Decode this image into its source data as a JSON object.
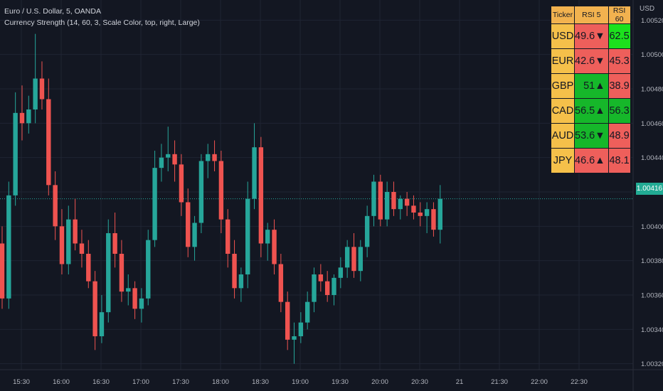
{
  "header": {
    "symbol": "Euro / U.S. Dollar, 5, OANDA",
    "indicator": "Currency Strength (14, 60, 3, Scale Color, top, right, Large)"
  },
  "price_scale": {
    "unit": "USD",
    "labels": [
      "1.00520",
      "1.00500",
      "1.00480",
      "1.00460",
      "1.00440",
      "1.00420",
      "1.00400",
      "1.00380",
      "1.00360",
      "1.00340",
      "1.00320"
    ],
    "last_price": "1.00416"
  },
  "time_axis": {
    "labels": [
      "15:30",
      "16:00",
      "16:30",
      "17:00",
      "17:30",
      "18:00",
      "18:30",
      "19:00",
      "19:30",
      "20:00",
      "20:30",
      "21",
      "21:30",
      "22:00",
      "22:30"
    ]
  },
  "colors": {
    "background": "#131722",
    "up": "#26a69a",
    "down": "#ef5350",
    "grid": "#1f2433",
    "axis_text": "#b2b5be"
  },
  "table": {
    "headers": [
      "Ticker",
      "RSI 5",
      "RSI 60"
    ],
    "rows": [
      {
        "ticker": "USD",
        "rsi5": "49.6▼",
        "rsi5_color": "red",
        "rsi60": "62.5",
        "rsi60_color": "lime"
      },
      {
        "ticker": "EUR",
        "rsi5": "42.6▼",
        "rsi5_color": "red",
        "rsi60": "45.3",
        "rsi60_color": "red"
      },
      {
        "ticker": "GBP",
        "rsi5": "51▲",
        "rsi5_color": "green",
        "rsi60": "38.9",
        "rsi60_color": "red"
      },
      {
        "ticker": "CAD",
        "rsi5": "56.5▲",
        "rsi5_color": "green",
        "rsi60": "56.3",
        "rsi60_color": "green"
      },
      {
        "ticker": "AUD",
        "rsi5": "53.6▼",
        "rsi5_color": "green",
        "rsi60": "48.9",
        "rsi60_color": "red"
      },
      {
        "ticker": "JPY",
        "rsi5": "46.6▲",
        "rsi5_color": "red",
        "rsi60": "48.1",
        "rsi60_color": "red"
      }
    ]
  },
  "chart_data": {
    "type": "candlestick",
    "x_start": "15:25",
    "interval_minutes": 5,
    "ylim": [
      1.00312,
      1.00528
    ],
    "candles": [
      {
        "o": 1.0039,
        "h": 1.004,
        "l": 1.00352,
        "c": 1.00358
      },
      {
        "o": 1.00358,
        "h": 1.00426,
        "l": 1.00352,
        "c": 1.00418
      },
      {
        "o": 1.00418,
        "h": 1.00478,
        "l": 1.00412,
        "c": 1.00466
      },
      {
        "o": 1.00466,
        "h": 1.00482,
        "l": 1.0045,
        "c": 1.0046
      },
      {
        "o": 1.0046,
        "h": 1.00476,
        "l": 1.00454,
        "c": 1.00468
      },
      {
        "o": 1.00468,
        "h": 1.00512,
        "l": 1.0046,
        "c": 1.00486
      },
      {
        "o": 1.00486,
        "h": 1.00496,
        "l": 1.00468,
        "c": 1.00474
      },
      {
        "o": 1.00474,
        "h": 1.00486,
        "l": 1.00418,
        "c": 1.00424
      },
      {
        "o": 1.00424,
        "h": 1.00432,
        "l": 1.00392,
        "c": 1.004
      },
      {
        "o": 1.004,
        "h": 1.0041,
        "l": 1.00372,
        "c": 1.00378
      },
      {
        "o": 1.00378,
        "h": 1.00412,
        "l": 1.00372,
        "c": 1.00404
      },
      {
        "o": 1.00404,
        "h": 1.00416,
        "l": 1.00386,
        "c": 1.0039
      },
      {
        "o": 1.0039,
        "h": 1.00398,
        "l": 1.00376,
        "c": 1.00384
      },
      {
        "o": 1.00384,
        "h": 1.00392,
        "l": 1.00364,
        "c": 1.00368
      },
      {
        "o": 1.00368,
        "h": 1.00374,
        "l": 1.00328,
        "c": 1.00336
      },
      {
        "o": 1.00336,
        "h": 1.0036,
        "l": 1.00332,
        "c": 1.0035
      },
      {
        "o": 1.0035,
        "h": 1.00404,
        "l": 1.00344,
        "c": 1.00396
      },
      {
        "o": 1.00396,
        "h": 1.00408,
        "l": 1.00376,
        "c": 1.00384
      },
      {
        "o": 1.00384,
        "h": 1.00392,
        "l": 1.00356,
        "c": 1.00362
      },
      {
        "o": 1.00362,
        "h": 1.00372,
        "l": 1.00354,
        "c": 1.00364
      },
      {
        "o": 1.00364,
        "h": 1.00368,
        "l": 1.00346,
        "c": 1.00352
      },
      {
        "o": 1.00352,
        "h": 1.00364,
        "l": 1.00344,
        "c": 1.00358
      },
      {
        "o": 1.00358,
        "h": 1.00398,
        "l": 1.00354,
        "c": 1.00392
      },
      {
        "o": 1.00392,
        "h": 1.00444,
        "l": 1.00388,
        "c": 1.00434
      },
      {
        "o": 1.00434,
        "h": 1.00448,
        "l": 1.00426,
        "c": 1.0044
      },
      {
        "o": 1.0044,
        "h": 1.00458,
        "l": 1.00432,
        "c": 1.00442
      },
      {
        "o": 1.00442,
        "h": 1.0045,
        "l": 1.00426,
        "c": 1.00436
      },
      {
        "o": 1.00436,
        "h": 1.00442,
        "l": 1.00406,
        "c": 1.00414
      },
      {
        "o": 1.00414,
        "h": 1.00422,
        "l": 1.00382,
        "c": 1.00388
      },
      {
        "o": 1.00388,
        "h": 1.00406,
        "l": 1.0038,
        "c": 1.00402
      },
      {
        "o": 1.00402,
        "h": 1.00442,
        "l": 1.00396,
        "c": 1.00438
      },
      {
        "o": 1.00438,
        "h": 1.00448,
        "l": 1.00428,
        "c": 1.00442
      },
      {
        "o": 1.00442,
        "h": 1.0045,
        "l": 1.00432,
        "c": 1.00438
      },
      {
        "o": 1.00438,
        "h": 1.00444,
        "l": 1.00396,
        "c": 1.00404
      },
      {
        "o": 1.00404,
        "h": 1.0041,
        "l": 1.00376,
        "c": 1.00384
      },
      {
        "o": 1.00384,
        "h": 1.00392,
        "l": 1.00358,
        "c": 1.00364
      },
      {
        "o": 1.00364,
        "h": 1.00376,
        "l": 1.00356,
        "c": 1.00372
      },
      {
        "o": 1.00372,
        "h": 1.00426,
        "l": 1.00364,
        "c": 1.00416
      },
      {
        "o": 1.00416,
        "h": 1.0046,
        "l": 1.0041,
        "c": 1.00446
      },
      {
        "o": 1.00446,
        "h": 1.00452,
        "l": 1.00382,
        "c": 1.0039
      },
      {
        "o": 1.0039,
        "h": 1.00402,
        "l": 1.0038,
        "c": 1.00398
      },
      {
        "o": 1.00398,
        "h": 1.00404,
        "l": 1.00372,
        "c": 1.00378
      },
      {
        "o": 1.00378,
        "h": 1.00384,
        "l": 1.0035,
        "c": 1.00356
      },
      {
        "o": 1.00356,
        "h": 1.00362,
        "l": 1.00328,
        "c": 1.00334
      },
      {
        "o": 1.00334,
        "h": 1.00344,
        "l": 1.0032,
        "c": 1.00336
      },
      {
        "o": 1.00336,
        "h": 1.0035,
        "l": 1.00332,
        "c": 1.00344
      },
      {
        "o": 1.00344,
        "h": 1.00362,
        "l": 1.0034,
        "c": 1.00356
      },
      {
        "o": 1.00356,
        "h": 1.00376,
        "l": 1.0035,
        "c": 1.00372
      },
      {
        "o": 1.00372,
        "h": 1.00378,
        "l": 1.00362,
        "c": 1.00368
      },
      {
        "o": 1.00368,
        "h": 1.00374,
        "l": 1.00356,
        "c": 1.0036
      },
      {
        "o": 1.0036,
        "h": 1.00372,
        "l": 1.00354,
        "c": 1.0037
      },
      {
        "o": 1.0037,
        "h": 1.00382,
        "l": 1.00364,
        "c": 1.00376
      },
      {
        "o": 1.00376,
        "h": 1.00392,
        "l": 1.0037,
        "c": 1.00388
      },
      {
        "o": 1.00388,
        "h": 1.00396,
        "l": 1.0037,
        "c": 1.00374
      },
      {
        "o": 1.00374,
        "h": 1.00392,
        "l": 1.00368,
        "c": 1.00388
      },
      {
        "o": 1.00388,
        "h": 1.00412,
        "l": 1.00382,
        "c": 1.00406
      },
      {
        "o": 1.00406,
        "h": 1.0043,
        "l": 1.004,
        "c": 1.00426
      },
      {
        "o": 1.00426,
        "h": 1.0043,
        "l": 1.004,
        "c": 1.00404
      },
      {
        "o": 1.00404,
        "h": 1.00426,
        "l": 1.004,
        "c": 1.0042
      },
      {
        "o": 1.0042,
        "h": 1.00426,
        "l": 1.00406,
        "c": 1.0041
      },
      {
        "o": 1.0041,
        "h": 1.00418,
        "l": 1.00404,
        "c": 1.00416
      },
      {
        "o": 1.00416,
        "h": 1.0042,
        "l": 1.00406,
        "c": 1.00412
      },
      {
        "o": 1.00412,
        "h": 1.00418,
        "l": 1.00404,
        "c": 1.00408
      },
      {
        "o": 1.00408,
        "h": 1.00414,
        "l": 1.004,
        "c": 1.00406
      },
      {
        "o": 1.00406,
        "h": 1.00414,
        "l": 1.00396,
        "c": 1.0041
      },
      {
        "o": 1.0041,
        "h": 1.00414,
        "l": 1.00394,
        "c": 1.00398
      },
      {
        "o": 1.00398,
        "h": 1.00424,
        "l": 1.0039,
        "c": 1.00416
      }
    ]
  }
}
